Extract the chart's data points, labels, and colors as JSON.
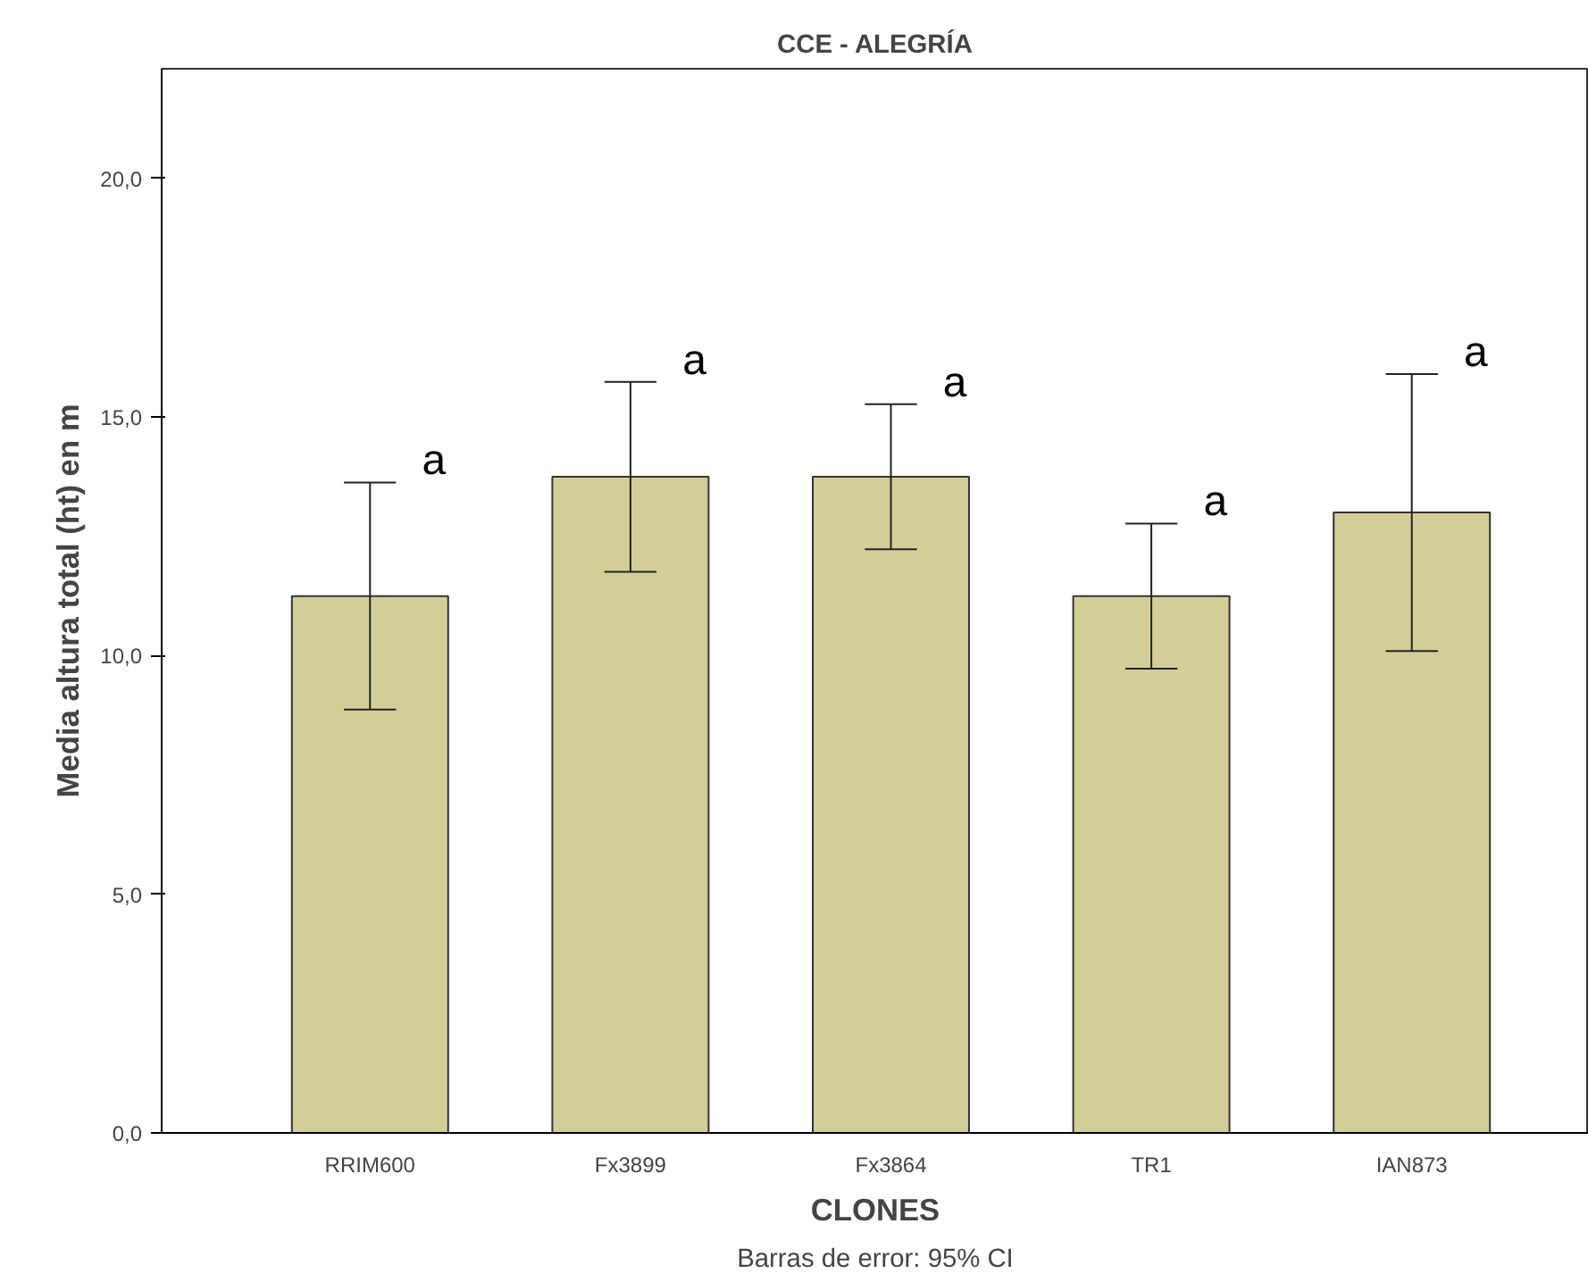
{
  "chart_data": {
    "type": "bar",
    "title": "CCE - ALEGRÍA",
    "xlabel": "CLONES",
    "ylabel": "Media altura total (ht) en m",
    "categories": [
      "RRIM600",
      "Fx3899",
      "Fx3864",
      "TR1",
      "IAN873"
    ],
    "values": [
      11.25,
      13.75,
      13.75,
      11.25,
      13.0
    ],
    "errors": [
      [
        8.87,
        13.63
      ],
      [
        11.76,
        15.74
      ],
      [
        12.23,
        15.27
      ],
      [
        9.73,
        12.77
      ],
      [
        10.1,
        15.9
      ]
    ],
    "color": "#d3ce98",
    "ylim": [
      0,
      22.3
    ],
    "yticks": [
      {
        "value": 0,
        "label": "0,0"
      },
      {
        "value": 5,
        "label": "5,0"
      },
      {
        "value": 10,
        "label": "10,0"
      },
      {
        "value": 15,
        "label": "15,0"
      },
      {
        "value": 20,
        "label": "20,0"
      }
    ],
    "grid": false,
    "annotations": [
      "a",
      "a",
      "a",
      "a",
      "a",
      "Barras de error: 95% CI"
    ]
  }
}
